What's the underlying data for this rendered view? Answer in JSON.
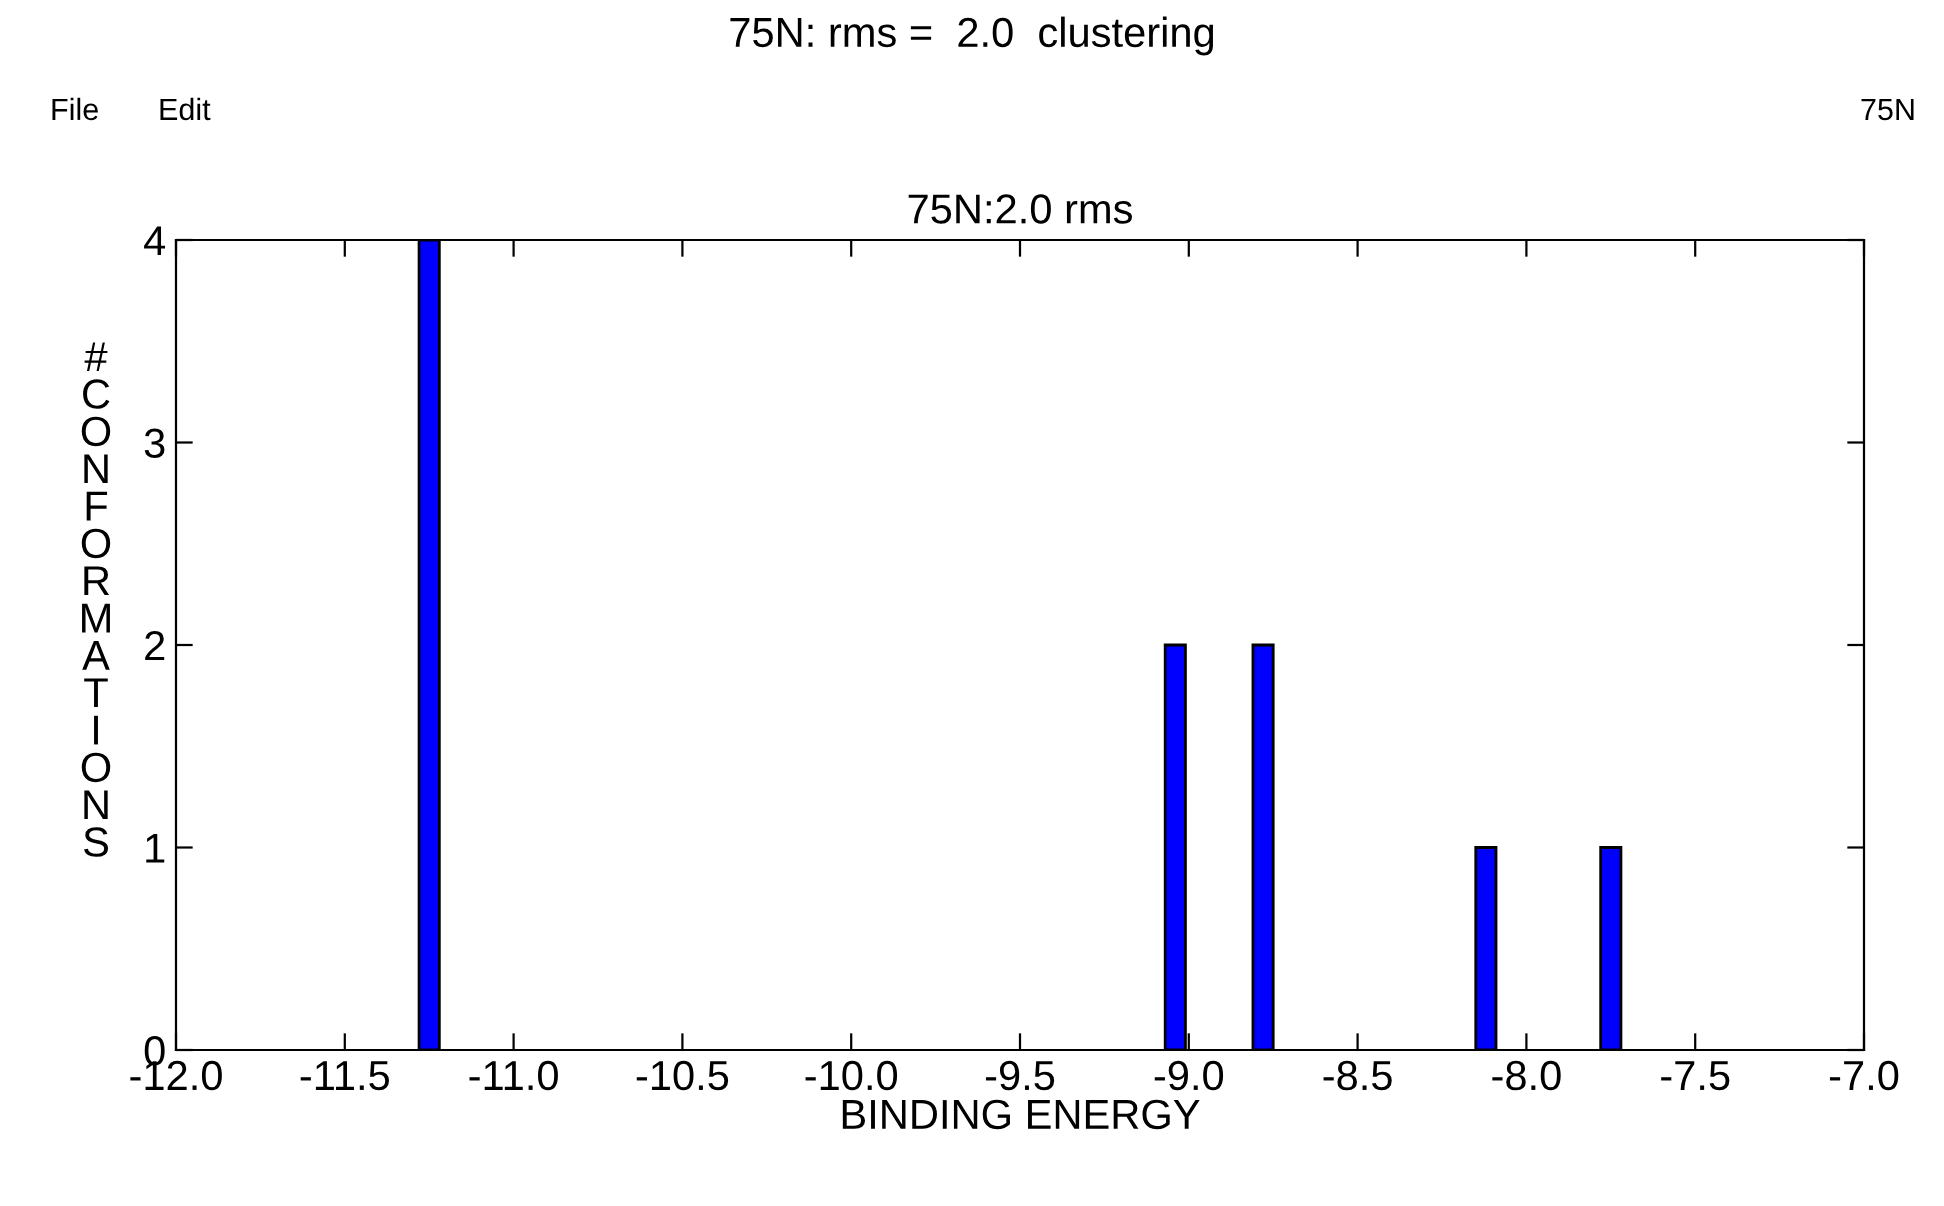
{
  "chart_data": {
    "type": "bar",
    "title": "75N:2.0 rms",
    "xlabel": "BINDING ENERGY",
    "ylabel": "#CONFORMATIONS",
    "x": [
      -11.25,
      -9.04,
      -8.78,
      -8.12,
      -7.75
    ],
    "values": [
      4,
      2,
      2,
      1,
      1
    ],
    "color": "#0000ff",
    "xlim": [
      -12.0,
      -7.0
    ],
    "xticks": [
      {
        "value": -12.0,
        "label": "-12.0"
      },
      {
        "value": -11.5,
        "label": "-11.5"
      },
      {
        "value": -11.0,
        "label": "-11.0"
      },
      {
        "value": -10.5,
        "label": "-10.5"
      },
      {
        "value": -10.0,
        "label": "-10.0"
      },
      {
        "value": -9.5,
        "label": "-9.5"
      },
      {
        "value": -9.0,
        "label": "-9.0"
      },
      {
        "value": -8.5,
        "label": "-8.5"
      },
      {
        "value": -8.0,
        "label": "-8.0"
      },
      {
        "value": -7.5,
        "label": "-7.5"
      },
      {
        "value": -7.0,
        "label": "-7.0"
      }
    ],
    "ylim": [
      0,
      4
    ],
    "yticks": [
      0,
      1,
      2,
      3,
      4
    ],
    "grid": false,
    "legend": false,
    "annotations": [
      "75N: rms =  2.0  clustering",
      "File",
      "Edit",
      "75N"
    ]
  }
}
